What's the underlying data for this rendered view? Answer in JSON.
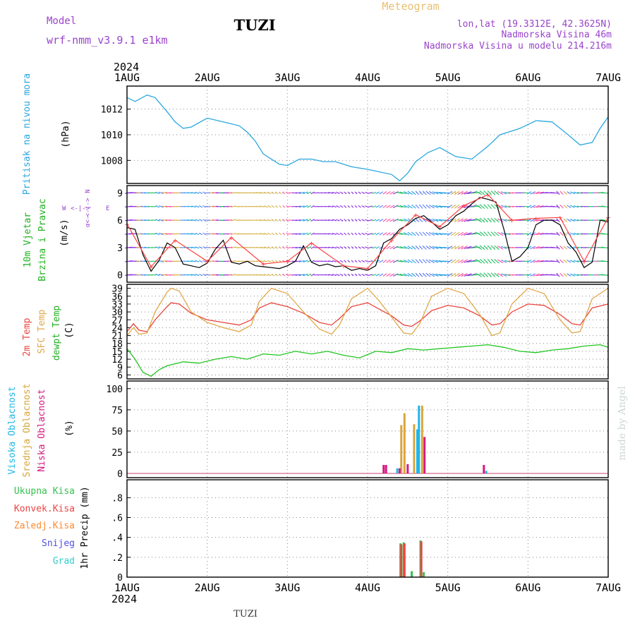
{
  "header": {
    "model_label": "Model",
    "model_name": "wrf-nmm_v3.9.1 e1km",
    "station": "TUZI",
    "product": "Meteogram",
    "coords": "lon,lat (19.3312E, 42.3625N)",
    "elevation": "Nadmorska Visina 46m",
    "model_elevation": "Nadmorska Visina u modelu 214.216m",
    "footer_station": "TUZI",
    "watermark": "made by Angel"
  },
  "time_axis": {
    "year": "2024",
    "labels": [
      "1AUG",
      "2AUG",
      "3AUG",
      "4AUG",
      "5AUG",
      "6AUG",
      "7AUG"
    ]
  },
  "colors": {
    "pressure": "#2aa7e0",
    "wind_speed": "#000000",
    "wind_gust": "#ff4040",
    "t2m": "#e8453c",
    "sfc": "#e0a84a",
    "dewpt": "#22c522",
    "cloud_high": "#21b7e6",
    "cloud_mid": "#d8a53a",
    "cloud_low": "#d6197f",
    "precip_total": "#33c24d",
    "precip_conv": "#ee4444",
    "precip_frozen": "#ff8a30",
    "precip_snow": "#5050e0",
    "precip_grad": "#33cccc",
    "model_label": "#9944cc",
    "product": "#e8c073"
  },
  "chart_data": [
    {
      "type": "line",
      "panel": "pressure",
      "ylabel": [
        "Pritisak na nivou mora",
        "(hPa)"
      ],
      "yticks": [
        1008,
        1010,
        1012
      ],
      "ylim": [
        1006.2,
        1013.8
      ],
      "xlim": [
        0,
        6
      ],
      "grid": true,
      "series": [
        {
          "name": "Pritisak na nivou mora",
          "x": [
            0,
            0.1,
            0.25,
            0.35,
            0.5,
            0.6,
            0.7,
            0.8,
            1.0,
            1.2,
            1.4,
            1.5,
            1.6,
            1.7,
            1.9,
            2.0,
            2.15,
            2.3,
            2.45,
            2.6,
            2.8,
            3.0,
            3.3,
            3.4,
            3.5,
            3.6,
            3.75,
            3.9,
            4.1,
            4.3,
            4.5,
            4.65,
            4.8,
            4.9,
            5.1,
            5.3,
            5.5,
            5.65,
            5.8,
            5.9,
            6.0
          ],
          "y": [
            1012.9,
            1012.6,
            1013.1,
            1012.9,
            1011.8,
            1011.0,
            1010.5,
            1010.6,
            1011.3,
            1011.0,
            1010.7,
            1010.2,
            1009.5,
            1008.5,
            1007.7,
            1007.6,
            1008.1,
            1008.1,
            1007.9,
            1007.9,
            1007.5,
            1007.3,
            1006.9,
            1006.4,
            1007.0,
            1007.9,
            1008.6,
            1009.0,
            1008.3,
            1008.1,
            1009.1,
            1010.0,
            1010.3,
            1010.5,
            1011.1,
            1011.0,
            1010.0,
            1009.2,
            1009.4,
            1010.5,
            1011.4
          ]
        }
      ]
    },
    {
      "type": "line",
      "panel": "wind",
      "ylabel": [
        "10m Vjetar",
        "Brzina i Pravac",
        "(m/s)"
      ],
      "compass": {
        "N": "N",
        "E": "E",
        "W": "W",
        "arrows": "<-|->",
        "alpha": "α<-"
      },
      "yticks": [
        0,
        3,
        6,
        9
      ],
      "ylim": [
        -0.8,
        9.8
      ],
      "xlim": [
        0,
        6
      ],
      "grid": true,
      "series": [
        {
          "name": "Brzina",
          "x": [
            0,
            0.1,
            0.2,
            0.3,
            0.4,
            0.5,
            0.6,
            0.7,
            0.8,
            0.9,
            1.0,
            1.1,
            1.2,
            1.3,
            1.4,
            1.5,
            1.6,
            1.7,
            1.8,
            1.9,
            2.0,
            2.1,
            2.2,
            2.3,
            2.4,
            2.5,
            2.6,
            2.7,
            2.8,
            2.9,
            3.0,
            3.1,
            3.2,
            3.3,
            3.4,
            3.5,
            3.6,
            3.7,
            3.8,
            3.9,
            4.0,
            4.1,
            4.2,
            4.3,
            4.4,
            4.5,
            4.6,
            4.7,
            4.8,
            4.9,
            5.0,
            5.1,
            5.2,
            5.3,
            5.4,
            5.5,
            5.6,
            5.7,
            5.8,
            5.9,
            6.0
          ],
          "y": [
            5.2,
            5.0,
            2.2,
            0.4,
            1.6,
            3.5,
            3.0,
            1.2,
            1.0,
            0.8,
            1.3,
            2.8,
            3.8,
            1.4,
            1.2,
            1.5,
            1.0,
            0.9,
            0.8,
            0.7,
            1.0,
            1.5,
            3.2,
            1.4,
            1.0,
            1.2,
            0.9,
            1.0,
            0.5,
            0.7,
            0.5,
            1.0,
            3.5,
            4.0,
            5.0,
            5.5,
            6.2,
            6.5,
            5.8,
            5.0,
            5.5,
            6.5,
            7.0,
            7.8,
            8.5,
            8.3,
            8.0,
            5.0,
            1.5,
            2.0,
            3.0,
            5.5,
            6.0,
            6.0,
            5.5,
            3.5,
            2.5,
            0.8,
            1.4,
            6.0,
            5.8
          ]
        },
        {
          "name": "Udari",
          "x": [
            0,
            0.3,
            0.6,
            1.0,
            1.3,
            1.7,
            2.0,
            2.3,
            2.7,
            3.0,
            3.3,
            3.6,
            3.9,
            4.2,
            4.5,
            4.8,
            5.1,
            5.4,
            5.7,
            6.0
          ],
          "y": [
            5.6,
            0.9,
            3.8,
            1.5,
            4.1,
            1.2,
            1.5,
            3.5,
            1.0,
            0.7,
            3.8,
            6.6,
            5.3,
            7.6,
            8.8,
            6.0,
            6.2,
            6.3,
            1.5,
            6.3
          ]
        }
      ]
    },
    {
      "type": "line",
      "panel": "temperature",
      "ylabel": [
        "2m Temp",
        "SFC Temp",
        "dewpt Temp",
        "(C)"
      ],
      "yticks": [
        6,
        9,
        12,
        15,
        18,
        21,
        24,
        27,
        30,
        33,
        36,
        39
      ],
      "ylim": [
        4.5,
        40.5
      ],
      "xlim": [
        0,
        6
      ],
      "grid": true,
      "series": [
        {
          "name": "2m Temp",
          "x": [
            0,
            0.08,
            0.15,
            0.25,
            0.35,
            0.5,
            0.55,
            0.65,
            0.8,
            1.0,
            1.2,
            1.4,
            1.55,
            1.65,
            1.8,
            2.0,
            2.2,
            2.4,
            2.55,
            2.65,
            2.8,
            3.0,
            3.15,
            3.3,
            3.45,
            3.55,
            3.65,
            3.8,
            4.0,
            4.2,
            4.4,
            4.55,
            4.65,
            4.8,
            5.0,
            5.2,
            5.4,
            5.55,
            5.65,
            5.8,
            6.0
          ],
          "y": [
            22.5,
            25.5,
            23.0,
            22.5,
            27.0,
            32.0,
            33.5,
            33.0,
            29.5,
            27.0,
            26.0,
            25.0,
            27.0,
            31.5,
            33.5,
            32.0,
            29.5,
            26.0,
            25.0,
            27.5,
            32.0,
            33.5,
            31.0,
            28.5,
            25.0,
            24.5,
            26.5,
            30.5,
            32.5,
            31.5,
            28.5,
            25.0,
            25.5,
            30.0,
            33.0,
            32.5,
            29.0,
            25.5,
            25.0,
            31.5,
            33.0
          ]
        },
        {
          "name": "SFC Temp",
          "x": [
            0,
            0.08,
            0.15,
            0.25,
            0.35,
            0.5,
            0.55,
            0.65,
            0.8,
            1.0,
            1.2,
            1.4,
            1.55,
            1.65,
            1.8,
            2.0,
            2.2,
            2.4,
            2.55,
            2.65,
            2.8,
            3.0,
            3.15,
            3.3,
            3.45,
            3.55,
            3.65,
            3.8,
            4.0,
            4.2,
            4.4,
            4.55,
            4.65,
            4.8,
            5.0,
            5.2,
            5.4,
            5.55,
            5.65,
            5.8,
            6.0
          ],
          "y": [
            21.0,
            24.0,
            21.5,
            22.0,
            30.0,
            37.5,
            39.0,
            38.0,
            30.0,
            26.0,
            24.0,
            22.5,
            25.0,
            34.0,
            39.0,
            37.0,
            30.0,
            23.5,
            21.5,
            25.0,
            35.0,
            39.0,
            34.0,
            28.0,
            22.0,
            21.5,
            25.5,
            36.0,
            39.0,
            37.0,
            29.0,
            21.0,
            22.0,
            33.0,
            39.0,
            37.0,
            27.0,
            22.0,
            22.5,
            35.0,
            39.0
          ]
        },
        {
          "name": "dewpt Temp",
          "x": [
            0,
            0.1,
            0.2,
            0.3,
            0.4,
            0.5,
            0.7,
            0.9,
            1.1,
            1.3,
            1.5,
            1.7,
            1.9,
            2.1,
            2.3,
            2.5,
            2.7,
            2.9,
            3.1,
            3.3,
            3.5,
            3.7,
            3.9,
            4.1,
            4.3,
            4.5,
            4.7,
            4.9,
            5.1,
            5.3,
            5.5,
            5.7,
            5.9,
            6.0
          ],
          "y": [
            16.0,
            12.0,
            7.0,
            5.5,
            8.0,
            9.5,
            11.0,
            10.5,
            12.0,
            13.0,
            12.0,
            14.0,
            13.5,
            15.0,
            14.0,
            15.0,
            13.5,
            12.5,
            15.0,
            14.5,
            16.0,
            15.5,
            16.0,
            16.5,
            17.0,
            17.5,
            16.5,
            15.0,
            14.5,
            15.5,
            16.0,
            17.0,
            17.5,
            16.5
          ]
        }
      ]
    },
    {
      "type": "bar",
      "panel": "clouds",
      "ylabel": [
        "Visoka Oblacnost",
        "Srednja Oblacnost",
        "Niska Oblacnost",
        "(%)"
      ],
      "yticks": [
        0,
        25,
        50,
        75,
        100
      ],
      "ylim": [
        -5,
        109
      ],
      "xlim": [
        0,
        6
      ],
      "grid": true,
      "series": [
        {
          "name": "Visoka Oblacnost",
          "x": [
            3.37,
            3.62,
            3.64,
            4.48
          ],
          "y": [
            6,
            52,
            80,
            3
          ]
        },
        {
          "name": "Srednja Oblacnost",
          "x": [
            3.42,
            3.46,
            3.58,
            3.68
          ],
          "y": [
            57,
            71,
            58,
            80
          ]
        },
        {
          "name": "Niska Oblacnost",
          "x": [
            3.2,
            3.23,
            3.4,
            3.5,
            3.71,
            4.45
          ],
          "y": [
            10,
            10,
            6,
            11,
            43,
            10
          ]
        }
      ]
    },
    {
      "type": "bar",
      "panel": "precip",
      "ylabel": [
        "1hr Precip (mm)"
      ],
      "legend": [
        "Ukupna Kisa",
        "Konvek.Kisa",
        "Zaledj.Kisa",
        "Snijeg",
        "Grad"
      ],
      "yticks": [
        0,
        0.2,
        0.4,
        0.6,
        0.8
      ],
      "ylim": [
        0,
        0.98
      ],
      "xlim": [
        0,
        6
      ],
      "grid": true,
      "series": [
        {
          "name": "Ukupna Kisa",
          "x": [
            3.41,
            3.45,
            3.55,
            3.66,
            3.7
          ],
          "y": [
            0.34,
            0.35,
            0.06,
            0.37,
            0.05
          ]
        },
        {
          "name": "Konvek.Kisa",
          "x": [
            3.42,
            3.46,
            3.67
          ],
          "y": [
            0.33,
            0.34,
            0.36
          ]
        }
      ]
    }
  ]
}
